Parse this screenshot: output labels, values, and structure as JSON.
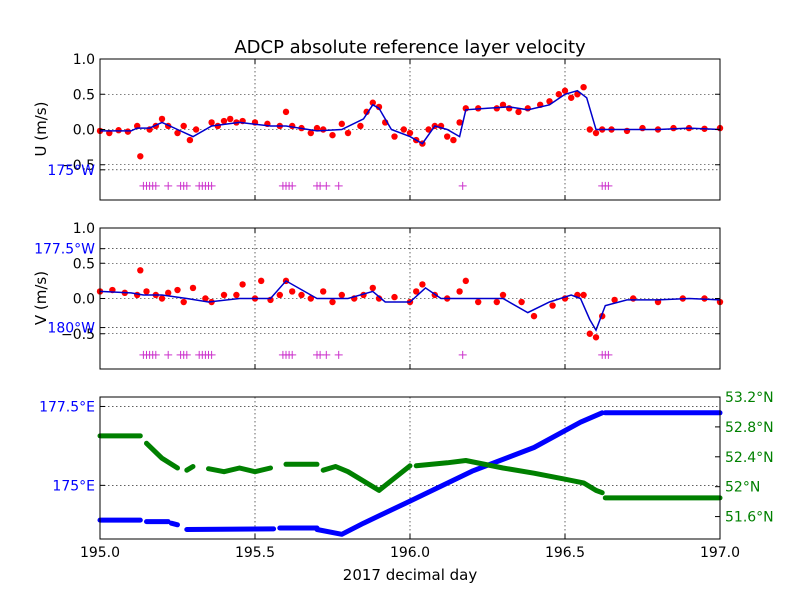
{
  "chart_data": [
    {
      "type": "scatter",
      "panel": "u",
      "title": "ADCP absolute reference layer velocity",
      "ylabel": "U (m/s)",
      "xlim": [
        195.0,
        197.0
      ],
      "ylim": [
        -1.0,
        1.0
      ],
      "yticks": [
        "1.0",
        "0.5",
        "0.0",
        "−0.5"
      ],
      "ytick_values": [
        1.0,
        0.5,
        0.0,
        -0.5
      ],
      "grid": true,
      "colors": {
        "points": "#ff0000",
        "line": "#0000cc",
        "flags": "#cc33cc"
      },
      "series": [
        {
          "kind": "points",
          "x": [
            195.0,
            195.03,
            195.06,
            195.09,
            195.12,
            195.13,
            195.16,
            195.18,
            195.2,
            195.22,
            195.25,
            195.27,
            195.29,
            195.31,
            195.36,
            195.38,
            195.4,
            195.42,
            195.44,
            195.46,
            195.5,
            195.54,
            195.58,
            195.6,
            195.62,
            195.65,
            195.68,
            195.7,
            195.72,
            195.75,
            195.78,
            195.8,
            195.84,
            195.86,
            195.88,
            195.9,
            195.92,
            195.95,
            195.98,
            196.0,
            196.02,
            196.04,
            196.06,
            196.08,
            196.1,
            196.12,
            196.14,
            196.16,
            196.18,
            196.22,
            196.28,
            196.3,
            196.32,
            196.35,
            196.38,
            196.42,
            196.45,
            196.48,
            196.5,
            196.52,
            196.54,
            196.56,
            196.58,
            196.6,
            196.62,
            196.65,
            196.7,
            196.75,
            196.8,
            196.85,
            196.9,
            196.95,
            197.0
          ],
          "y": [
            -0.02,
            -0.05,
            -0.01,
            -0.03,
            0.05,
            -0.38,
            0.0,
            0.05,
            0.15,
            0.05,
            -0.05,
            0.05,
            -0.15,
            0.0,
            0.1,
            0.05,
            0.12,
            0.15,
            0.1,
            0.12,
            0.1,
            0.08,
            0.05,
            0.25,
            0.05,
            0.02,
            -0.05,
            0.02,
            0.0,
            -0.08,
            0.08,
            -0.05,
            0.05,
            0.25,
            0.38,
            0.32,
            0.1,
            -0.1,
            0.0,
            -0.05,
            -0.15,
            -0.2,
            0.0,
            0.05,
            0.05,
            -0.1,
            -0.15,
            0.1,
            0.3,
            0.3,
            0.3,
            0.35,
            0.3,
            0.25,
            0.3,
            0.35,
            0.4,
            0.5,
            0.55,
            0.45,
            0.5,
            0.6,
            0.0,
            -0.05,
            0.0,
            0.0,
            -0.02,
            0.02,
            0.0,
            0.02,
            0.02,
            0.01,
            0.02
          ]
        },
        {
          "kind": "line",
          "x": [
            195.0,
            195.1,
            195.12,
            195.16,
            195.2,
            195.25,
            195.3,
            195.36,
            195.45,
            195.55,
            195.6,
            195.7,
            195.78,
            195.85,
            195.88,
            195.9,
            195.94,
            196.0,
            196.04,
            196.08,
            196.12,
            196.16,
            196.18,
            196.25,
            196.32,
            196.38,
            196.45,
            196.5,
            196.54,
            196.57,
            196.6,
            196.62,
            196.7,
            196.8,
            196.9,
            197.0
          ],
          "y": [
            -0.02,
            -0.02,
            0.02,
            0.02,
            0.1,
            0.0,
            -0.1,
            0.05,
            0.1,
            0.05,
            0.05,
            -0.02,
            0.0,
            0.15,
            0.35,
            0.3,
            0.0,
            -0.1,
            -0.2,
            0.05,
            0.0,
            -0.1,
            0.28,
            0.3,
            0.32,
            0.28,
            0.35,
            0.5,
            0.55,
            0.45,
            0.0,
            0.0,
            0.0,
            0.0,
            0.02,
            0.0
          ]
        },
        {
          "kind": "flags",
          "y": -0.8,
          "x": [
            195.14,
            195.15,
            195.16,
            195.17,
            195.18,
            195.22,
            195.26,
            195.27,
            195.28,
            195.32,
            195.33,
            195.34,
            195.35,
            195.36,
            195.59,
            195.6,
            195.61,
            195.62,
            195.7,
            195.71,
            195.73,
            195.77,
            196.17,
            196.62,
            196.63,
            196.64
          ]
        }
      ]
    },
    {
      "type": "scatter",
      "panel": "v",
      "ylabel": "V (m/s)",
      "xlim": [
        195.0,
        197.0
      ],
      "ylim": [
        -1.0,
        1.0
      ],
      "yticks": [
        "1.0",
        "0.5",
        "0.0",
        "−0.5"
      ],
      "ytick_values": [
        1.0,
        0.5,
        0.0,
        -0.5
      ],
      "grid": true,
      "colors": {
        "points": "#ff0000",
        "line": "#0000cc",
        "flags": "#cc33cc"
      },
      "series": [
        {
          "kind": "points",
          "x": [
            195.0,
            195.04,
            195.08,
            195.12,
            195.13,
            195.15,
            195.18,
            195.2,
            195.22,
            195.25,
            195.27,
            195.3,
            195.34,
            195.36,
            195.4,
            195.44,
            195.46,
            195.5,
            195.52,
            195.55,
            195.58,
            195.6,
            195.62,
            195.65,
            195.68,
            195.72,
            195.75,
            195.78,
            195.82,
            195.85,
            195.88,
            195.9,
            195.95,
            196.0,
            196.02,
            196.04,
            196.08,
            196.12,
            196.16,
            196.18,
            196.22,
            196.28,
            196.3,
            196.36,
            196.4,
            196.46,
            196.5,
            196.54,
            196.56,
            196.58,
            196.6,
            196.62,
            196.66,
            196.72,
            196.8,
            196.88,
            196.95,
            197.0
          ],
          "y": [
            0.1,
            0.12,
            0.08,
            0.05,
            0.4,
            0.1,
            0.05,
            0.0,
            0.08,
            0.12,
            -0.05,
            0.15,
            0.0,
            -0.05,
            0.05,
            0.05,
            0.2,
            0.0,
            0.25,
            -0.02,
            0.05,
            0.25,
            0.1,
            0.05,
            0.0,
            0.1,
            -0.05,
            0.05,
            0.0,
            0.05,
            0.15,
            0.0,
            0.02,
            -0.05,
            0.1,
            0.2,
            0.05,
            0.0,
            0.1,
            0.25,
            -0.05,
            -0.05,
            0.05,
            -0.05,
            -0.25,
            -0.1,
            0.0,
            0.05,
            0.05,
            -0.5,
            -0.55,
            -0.25,
            -0.02,
            0.0,
            -0.05,
            0.0,
            0.0,
            -0.05
          ]
        },
        {
          "kind": "line",
          "x": [
            195.0,
            195.1,
            195.14,
            195.2,
            195.28,
            195.35,
            195.45,
            195.55,
            195.6,
            195.7,
            195.8,
            195.88,
            195.92,
            196.0,
            196.05,
            196.1,
            196.2,
            196.3,
            196.38,
            196.45,
            196.52,
            196.55,
            196.58,
            196.6,
            196.63,
            196.7,
            196.8,
            196.9,
            197.0
          ],
          "y": [
            0.1,
            0.08,
            0.05,
            0.05,
            0.0,
            -0.05,
            0.0,
            0.0,
            0.25,
            0.0,
            0.0,
            0.1,
            -0.05,
            -0.05,
            0.15,
            0.0,
            0.0,
            0.0,
            -0.2,
            -0.05,
            0.05,
            0.0,
            -0.3,
            -0.45,
            -0.1,
            -0.02,
            -0.02,
            0.0,
            -0.02
          ]
        },
        {
          "kind": "flags",
          "y": -0.8,
          "x": [
            195.14,
            195.15,
            195.16,
            195.17,
            195.18,
            195.22,
            195.26,
            195.27,
            195.28,
            195.32,
            195.33,
            195.34,
            195.35,
            195.36,
            195.59,
            195.6,
            195.61,
            195.62,
            195.7,
            195.71,
            195.73,
            195.77,
            196.17,
            196.62,
            196.63,
            196.64
          ]
        }
      ]
    },
    {
      "type": "scatter",
      "panel": "position",
      "xlabel": "2017 decimal day",
      "xlim": [
        195.0,
        197.0
      ],
      "xticks": [
        "195.0",
        "195.5",
        "196.0",
        "196.5",
        "197.0"
      ],
      "xtick_values": [
        195.0,
        195.5,
        196.0,
        196.5,
        197.0
      ],
      "grid": true,
      "left_axis": {
        "quantity": "longitude",
        "ylim": [
          173.3,
          177.8
        ],
        "ticks": [
          "175°W",
          "177.5°W",
          "180°W",
          "177.5°E",
          "175°E"
        ],
        "tick_values": [
          185.0,
          182.5,
          180.0,
          177.5,
          175.0
        ],
        "color": "#0000ff"
      },
      "right_axis": {
        "quantity": "latitude",
        "ylim": [
          51.3,
          53.2
        ],
        "ticks": [
          "53.2°N",
          "52.8°N",
          "52.4°N",
          "52°N",
          "51.6°N"
        ],
        "tick_values": [
          53.2,
          52.8,
          52.4,
          52.0,
          51.6
        ],
        "color": "#008000"
      },
      "series": [
        {
          "quantity": "longitude",
          "color": "#0000ff",
          "segments": [
            {
              "x": [
                195.0,
                195.13
              ],
              "y": [
                173.9,
                173.9
              ]
            },
            {
              "x": [
                195.15,
                195.22
              ],
              "y": [
                173.85,
                173.85
              ]
            },
            {
              "x": [
                195.23,
                195.25
              ],
              "y": [
                173.8,
                173.75
              ]
            },
            {
              "x": [
                195.28,
                195.56
              ],
              "y": [
                173.6,
                173.62
              ]
            },
            {
              "x": [
                195.58,
                195.7
              ],
              "y": [
                173.65,
                173.65
              ]
            },
            {
              "x": [
                195.7,
                195.78,
                195.85,
                196.0,
                196.2,
                196.4,
                196.55,
                196.62
              ],
              "y": [
                173.6,
                173.45,
                173.8,
                174.5,
                175.45,
                176.2,
                177.0,
                177.3
              ]
            },
            {
              "x": [
                196.63,
                197.0
              ],
              "y": [
                177.3,
                177.3
              ]
            }
          ]
        },
        {
          "quantity": "latitude",
          "color": "#008000",
          "segments": [
            {
              "x": [
                195.0,
                195.13
              ],
              "y": [
                52.68,
                52.68
              ]
            },
            {
              "x": [
                195.15,
                195.2,
                195.25
              ],
              "y": [
                52.58,
                52.38,
                52.25
              ]
            },
            {
              "x": [
                195.28,
                195.3
              ],
              "y": [
                52.22,
                52.27
              ]
            },
            {
              "x": [
                195.35,
                195.4,
                195.45,
                195.5,
                195.55
              ],
              "y": [
                52.24,
                52.2,
                52.25,
                52.2,
                52.25
              ]
            },
            {
              "x": [
                195.6,
                195.7
              ],
              "y": [
                52.3,
                52.3
              ]
            },
            {
              "x": [
                195.72,
                195.76,
                195.8,
                195.9,
                196.0
              ],
              "y": [
                52.22,
                52.27,
                52.2,
                51.95,
                52.28
              ]
            },
            {
              "x": [
                196.02,
                196.12,
                196.18,
                196.3,
                196.4,
                196.5,
                196.56,
                196.6,
                196.62
              ],
              "y": [
                52.28,
                52.32,
                52.35,
                52.25,
                52.18,
                52.1,
                52.05,
                51.95,
                51.92
              ]
            },
            {
              "x": [
                196.63,
                197.0
              ],
              "y": [
                51.85,
                51.85
              ]
            }
          ]
        }
      ]
    }
  ]
}
